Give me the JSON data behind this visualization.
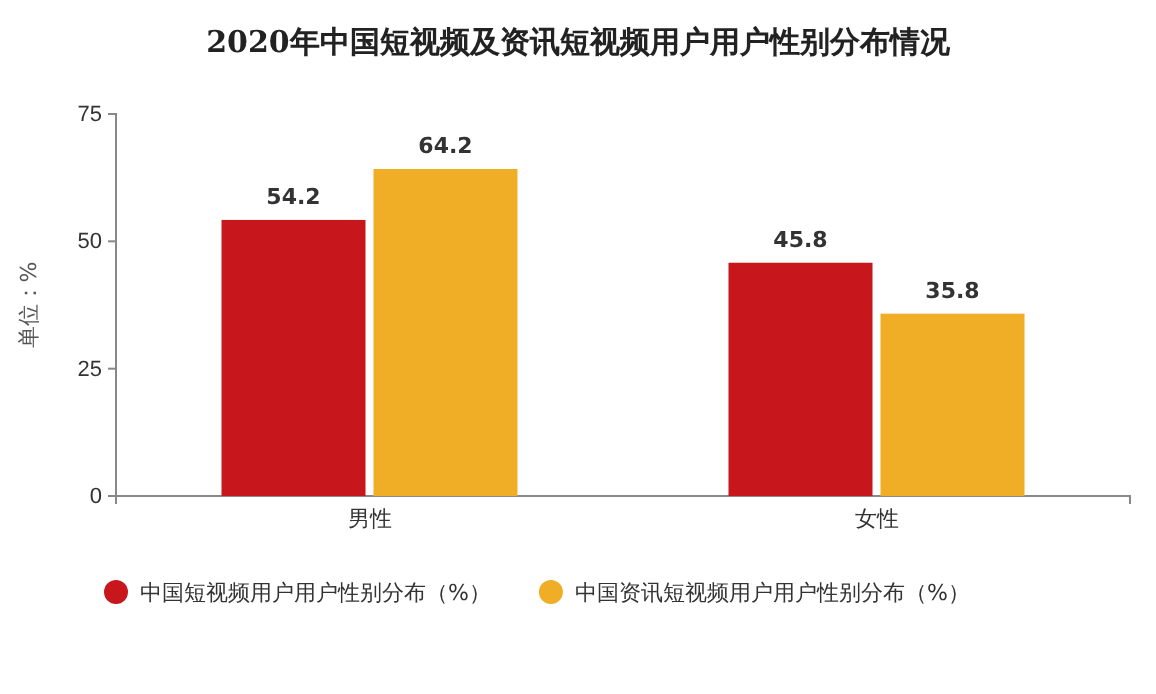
{
  "chart_data": {
    "type": "bar",
    "title": "2020年中国短视频及资讯短视频用户用户性别分布情况",
    "ylabel": "单位：%",
    "categories": [
      "男性",
      "女性"
    ],
    "series": [
      {
        "name": "中国短视频用户用户性别分布（%）",
        "color": "#c8161d",
        "values": [
          54.2,
          45.8
        ]
      },
      {
        "name": "中国资讯短视频用户用户性别分布（%）",
        "color": "#f0ad26",
        "values": [
          64.2,
          35.8
        ]
      }
    ],
    "ylim": [
      0,
      75
    ],
    "yticks": [
      0,
      25,
      50,
      75
    ],
    "grid": false,
    "legend": "bottom",
    "data_labels": true
  }
}
